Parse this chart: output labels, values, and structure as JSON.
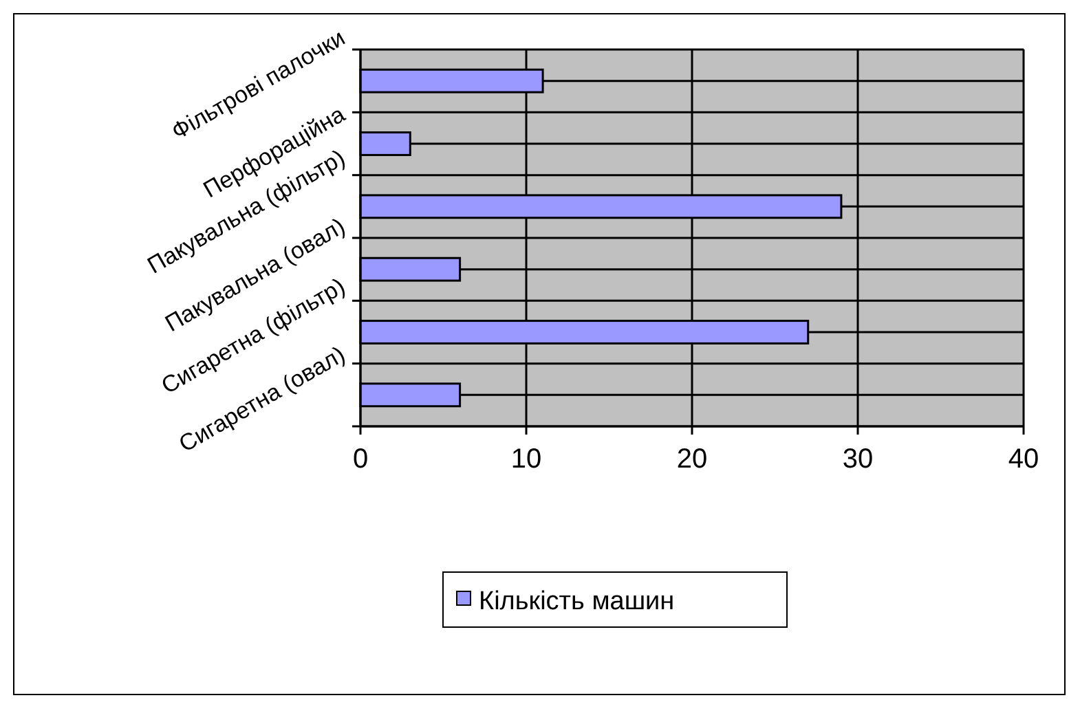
{
  "chart_data": {
    "type": "bar",
    "orientation": "horizontal",
    "categories": [
      "Фільтрові палочки",
      "Перфораційна",
      "Пакувальна (фільтр)",
      "Пакувальна (овал)",
      "Сигаретна (фільтр)",
      "Сигаретна (овал)"
    ],
    "series": [
      {
        "name": "Кількість машин",
        "color": "#9999ff",
        "values": [
          11,
          3,
          29,
          6,
          27,
          6
        ]
      }
    ],
    "xlim": [
      0,
      40
    ],
    "xticks": [
      0,
      10,
      20,
      30,
      40
    ],
    "grid": true,
    "legend": "bottom"
  }
}
